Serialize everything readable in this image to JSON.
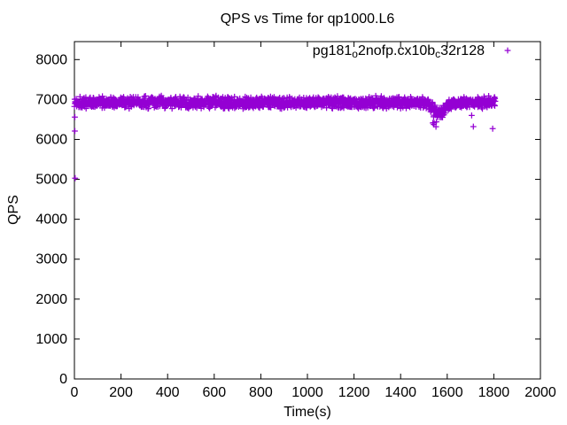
{
  "page": {
    "background": "#FFFFFF"
  },
  "chart_data": {
    "type": "scatter",
    "title": "QPS vs Time for qp1000.L6",
    "xlabel": "Time(s)",
    "ylabel": "QPS",
    "xlim": [
      0,
      2000
    ],
    "ylim": [
      0,
      8450
    ],
    "xticks": [
      0,
      200,
      400,
      600,
      800,
      1000,
      1200,
      1400,
      1600,
      1800,
      2000
    ],
    "yticks": [
      0,
      1000,
      2000,
      3000,
      4000,
      5000,
      6000,
      7000,
      8000
    ],
    "grid": false,
    "legend_position": "top-right-inside",
    "background": "#FFFFFF",
    "border_color": "#000000",
    "text_color": "#000000",
    "series": [
      {
        "name": "pg181_o2nofp.cx10b_c32r128",
        "label_parts": [
          {
            "text": "pg181",
            "subscript": false
          },
          {
            "text": "o",
            "subscript": true
          },
          {
            "text": "2nofp.cx10b",
            "subscript": false
          },
          {
            "text": "c",
            "subscript": true
          },
          {
            "text": "32r128",
            "subscript": false
          }
        ],
        "marker": "plus",
        "color": "#9400D3",
        "x_range_s": [
          0,
          1806
        ],
        "sample_interval_s": 1,
        "band_mean_qps": 6930,
        "band_jitter_qps": 170,
        "dip": {
          "center_s": 1565,
          "sigma_s": 28,
          "depth_qps": 240,
          "from_s": 1520,
          "to_s": 1655
        },
        "low_cluster": {
          "from_s": 1538,
          "to_s": 1588,
          "qps_min": 6250,
          "qps_max": 6670,
          "count": 14
        },
        "outliers": [
          [
            2,
            6560
          ],
          [
            2,
            6210
          ],
          [
            3,
            5030
          ],
          [
            1705,
            6600
          ],
          [
            1712,
            6320
          ],
          [
            1795,
            6270
          ]
        ],
        "seed": 1337,
        "summary": {
          "approx_mean_qps": 6930,
          "band_range_qps": [
            6750,
            7110
          ],
          "duration_s": 1806
        }
      }
    ]
  }
}
